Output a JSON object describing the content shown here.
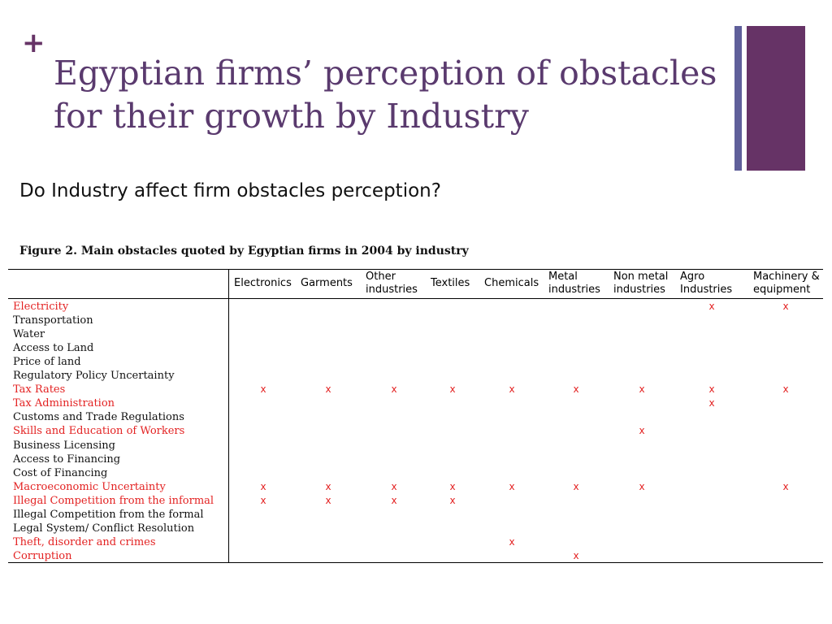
{
  "slide": {
    "plus_symbol": "+",
    "title_line1": "Egyptian firms’ perception of obstacles",
    "title_line2": "for their growth by Industry",
    "question": "Do Industry affect firm obstacles perception?",
    "figure_caption": "Figure 2. Main obstacles quoted by Egyptian firms in 2004 by industry"
  },
  "colors": {
    "accent_purple": "#663366",
    "title_purple": "#5a3a6e",
    "thin_bar": "#5f5f9a",
    "highlight_red": "#e32222",
    "text_black": "#111111"
  },
  "table": {
    "columns": [
      {
        "line1": "Electronics",
        "line2": ""
      },
      {
        "line1": "Garments",
        "line2": ""
      },
      {
        "line1": "Other",
        "line2": "industries"
      },
      {
        "line1": "Textiles",
        "line2": ""
      },
      {
        "line1": "Chemicals",
        "line2": ""
      },
      {
        "line1": "Metal",
        "line2": "industries"
      },
      {
        "line1": "Non metal",
        "line2": "industries"
      },
      {
        "line1": "Agro",
        "line2": "Industries"
      },
      {
        "line1": "Machinery &",
        "line2": "equipment"
      }
    ],
    "mark_symbol": "x",
    "rows": [
      {
        "label": "Electricity",
        "highlight": true,
        "marks": [
          7,
          8
        ]
      },
      {
        "label": "Transportation",
        "highlight": false,
        "marks": []
      },
      {
        "label": "Water",
        "highlight": false,
        "marks": []
      },
      {
        "label": "Access to Land",
        "highlight": false,
        "marks": []
      },
      {
        "label": "Price of land",
        "highlight": false,
        "marks": []
      },
      {
        "label": "Regulatory Policy Uncertainty",
        "highlight": false,
        "marks": []
      },
      {
        "label": "Tax Rates",
        "highlight": true,
        "marks": [
          0,
          1,
          2,
          3,
          4,
          5,
          6,
          7,
          8
        ]
      },
      {
        "label": "Tax Administration",
        "highlight": true,
        "marks": [
          7
        ]
      },
      {
        "label": "Customs and Trade Regulations",
        "highlight": false,
        "marks": []
      },
      {
        "label": "Skills and Education of Workers",
        "highlight": true,
        "marks": [
          6
        ]
      },
      {
        "label": "Business Licensing",
        "highlight": false,
        "marks": []
      },
      {
        "label": "Access to Financing",
        "highlight": false,
        "marks": []
      },
      {
        "label": "Cost of Financing",
        "highlight": false,
        "marks": []
      },
      {
        "label": "Macroeconomic Uncertainty",
        "highlight": true,
        "marks": [
          0,
          1,
          2,
          3,
          4,
          5,
          6,
          8
        ]
      },
      {
        "label": "Illegal Competition from the informal",
        "highlight": true,
        "marks": [
          0,
          1,
          2,
          3
        ]
      },
      {
        "label": "Illegal Competition from the formal",
        "highlight": false,
        "marks": []
      },
      {
        "label": "Legal System/ Conflict Resolution",
        "highlight": false,
        "marks": []
      },
      {
        "label": "Theft, disorder and crimes",
        "highlight": true,
        "marks": [
          4
        ]
      },
      {
        "label": "Corruption",
        "highlight": true,
        "marks": [
          5
        ]
      }
    ]
  }
}
